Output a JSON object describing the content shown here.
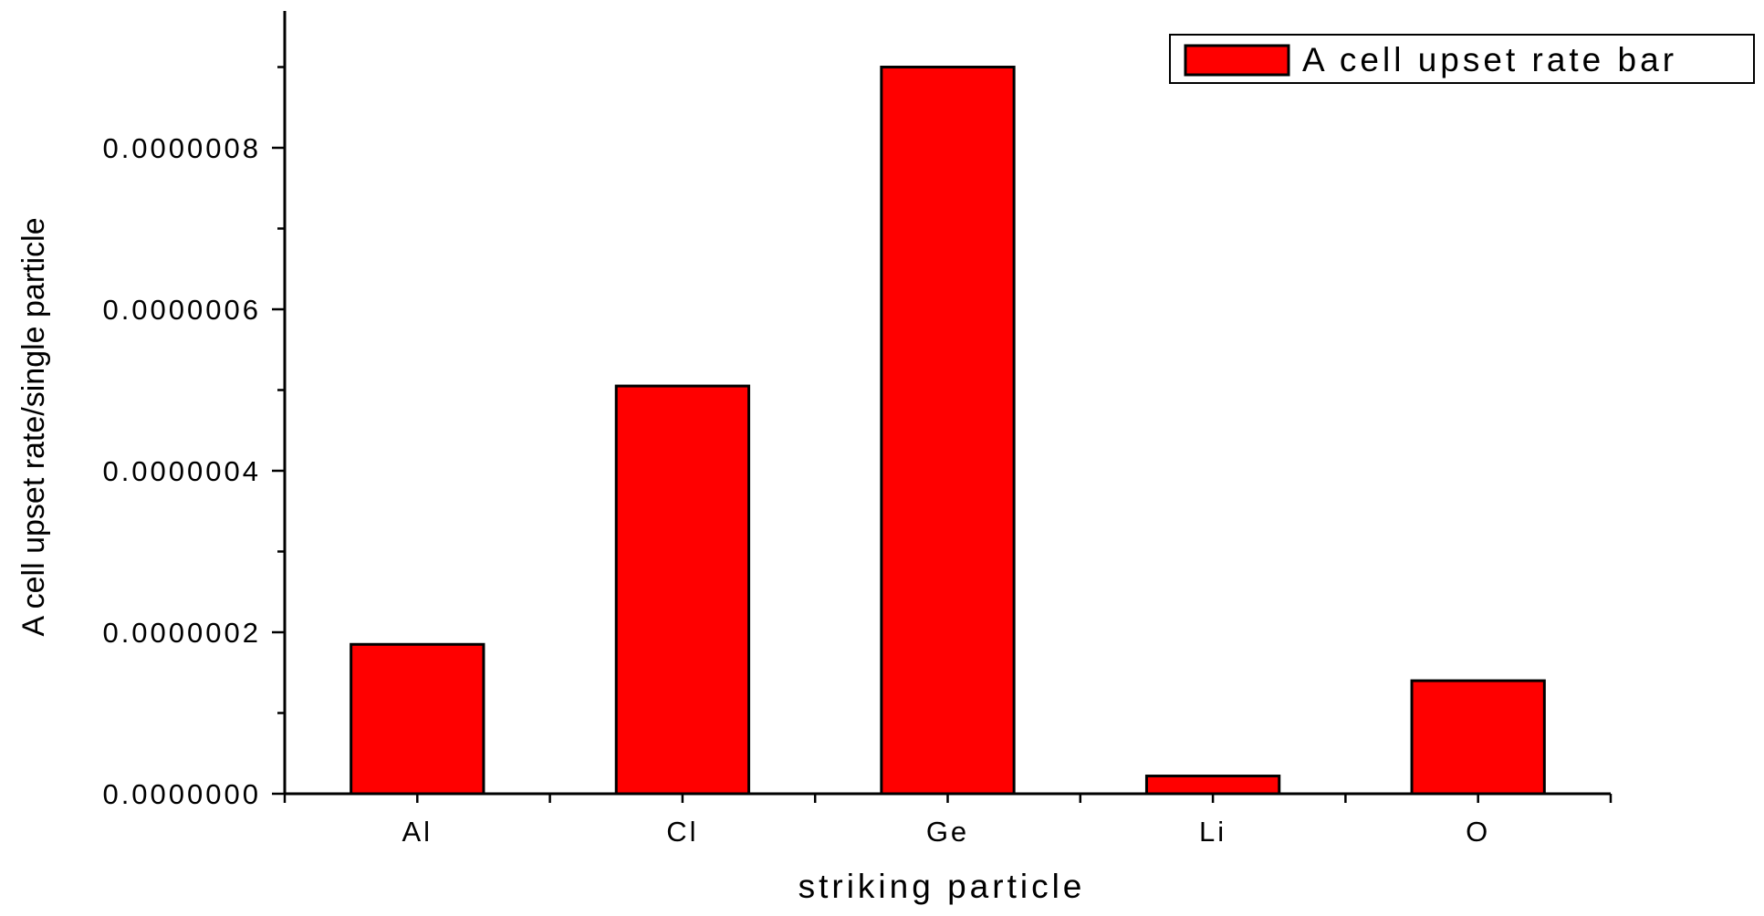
{
  "chart_data": {
    "type": "bar",
    "title": "",
    "xlabel": "striking particle",
    "ylabel": "A cell upset  rate/single particle",
    "categories": [
      "Al",
      "Cl",
      "Ge",
      "Li",
      "O"
    ],
    "series": [
      {
        "name": "A cell upset  rate bar",
        "values": [
          1.85e-07,
          5.05e-07,
          9e-07,
          2.2e-08,
          1.4e-07
        ]
      }
    ],
    "ylim": [
      0,
      9.6e-07
    ],
    "yticks": [
      "0.0000000",
      "0.0000002",
      "0.0000004",
      "0.0000006",
      "0.0000008"
    ],
    "ytick_values": [
      0,
      2e-07,
      4e-07,
      6e-07,
      8e-07
    ],
    "bar_color": "#ff0000",
    "grid": false,
    "legend_position": "top-right"
  }
}
